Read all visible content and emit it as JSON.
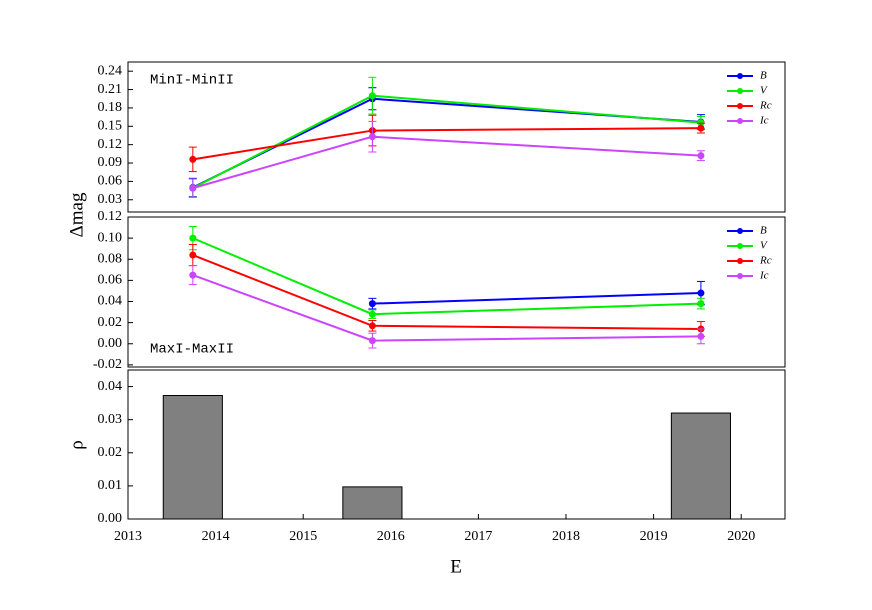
{
  "chart_data": [
    {
      "type": "line",
      "annotation": "MinI-MinII",
      "ylabel": "Δmag",
      "x": [
        2013.74,
        2015.79,
        2019.54
      ],
      "xlim": [
        2013,
        2020.5
      ],
      "ylim": [
        0.01,
        0.255
      ],
      "yticks": [
        0.03,
        0.06,
        0.09,
        0.12,
        0.15,
        0.18,
        0.21,
        0.24
      ],
      "series": [
        {
          "name": "B",
          "color": "#0000ff",
          "values": [
            0.05,
            0.195,
            0.157
          ],
          "errors": [
            0.015,
            0.018,
            0.012
          ]
        },
        {
          "name": "V",
          "color": "#00ee00",
          "values": [
            0.049,
            0.2,
            0.156
          ],
          "errors": [
            0.015,
            0.03,
            0.01
          ]
        },
        {
          "name": "Rc",
          "color": "#ff0000",
          "values": [
            0.096,
            0.143,
            0.147
          ],
          "errors": [
            0.02,
            0.025,
            0.008
          ]
        },
        {
          "name": "Ic",
          "color": "#cc44ff",
          "values": [
            0.049,
            0.133,
            0.102
          ],
          "errors": [
            0.015,
            0.025,
            0.008
          ]
        }
      ]
    },
    {
      "type": "line",
      "annotation": "MaxI-MaxII",
      "x": [
        2013.74,
        2015.79,
        2019.54
      ],
      "xlim": [
        2013,
        2020.5
      ],
      "ylim": [
        -0.022,
        0.12
      ],
      "yticks": [
        -0.02,
        {
          "value": 0,
          "label": "0.00"
        },
        0.02,
        0.04,
        0.06,
        0.08,
        {
          "value": 0.1,
          "label": "0.10"
        },
        0.12
      ],
      "series": [
        {
          "name": "B",
          "color": "#0000ff",
          "values": [
            null,
            0.038,
            0.048
          ],
          "errors": [
            null,
            0.005,
            0.011
          ]
        },
        {
          "name": "V",
          "color": "#00ee00",
          "values": [
            0.1,
            0.028,
            0.038
          ],
          "errors": [
            0.011,
            0.004,
            0.005
          ]
        },
        {
          "name": "Rc",
          "color": "#ff0000",
          "values": [
            0.084,
            0.017,
            0.014
          ],
          "errors": [
            0.01,
            0.005,
            0.007
          ]
        },
        {
          "name": "Ic",
          "color": "#cc44ff",
          "values": [
            0.065,
            0.003,
            0.007
          ],
          "errors": [
            0.009,
            0.007,
            0.007
          ]
        }
      ]
    },
    {
      "type": "bar",
      "ylabel": "ρ",
      "xlabel": "E",
      "color": "#808080",
      "x": [
        2013.74,
        2015.79,
        2019.54
      ],
      "values": [
        0.0373,
        0.0097,
        0.032
      ],
      "xlim": [
        2013,
        2020.5
      ],
      "xticks": [
        2013,
        2014,
        2015,
        2016,
        2017,
        2018,
        2019,
        2020
      ],
      "ylim": [
        0,
        0.045
      ],
      "yticks": [
        {
          "value": 0,
          "label": "0.00"
        },
        0.01,
        0.02,
        0.03,
        0.04
      ]
    }
  ]
}
